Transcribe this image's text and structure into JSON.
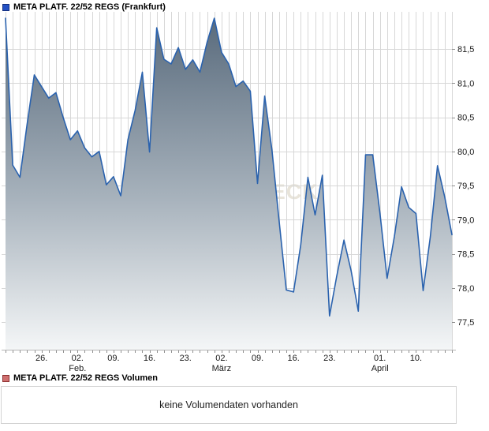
{
  "header": {
    "title": "META PLATF. 22/52 REGS (Frankfurt)"
  },
  "volume": {
    "title": "META PLATF. 22/52 REGS Volumen",
    "message": "keine Volumendaten vorhanden"
  },
  "watermark": "AKTIENCHECK",
  "colors": {
    "legend_blue": "#2451c4",
    "legend_blue_border": "#142f7d",
    "legend_red": "#cf6f6f",
    "legend_red_border": "#8c3030",
    "line": "#2a62ae",
    "fill_top": "#56687a",
    "fill_mid": "#a7b2bc",
    "fill_bottom": "#f4f6f7",
    "grid": "#d7d7d7",
    "axis": "#b5b5b5",
    "tick": "#8f8f8f",
    "text": "#1a1a1a",
    "watermark": "#e8e4da"
  },
  "chart_data": {
    "type": "area",
    "title": "META PLATF. 22/52 REGS (Frankfurt)",
    "legend_position": "top-left",
    "grid": true,
    "ylim": [
      77.1,
      82.05
    ],
    "y_ticks": [
      {
        "value": 81.5,
        "label": "81,5"
      },
      {
        "value": 81.0,
        "label": "81,0"
      },
      {
        "value": 80.5,
        "label": "80,5"
      },
      {
        "value": 80.0,
        "label": "80,0"
      },
      {
        "value": 79.5,
        "label": "79,5"
      },
      {
        "value": 79.0,
        "label": "79,0"
      },
      {
        "value": 78.5,
        "label": "78,5"
      },
      {
        "value": 78.0,
        "label": "78,0"
      },
      {
        "value": 77.5,
        "label": "77,5"
      }
    ],
    "x_ticks": [
      {
        "day": 5,
        "label": "26."
      },
      {
        "day": 10,
        "label": "02.",
        "month": "Feb."
      },
      {
        "day": 15,
        "label": "09."
      },
      {
        "day": 20,
        "label": "16."
      },
      {
        "day": 25,
        "label": "23."
      },
      {
        "day": 30,
        "label": "02.",
        "month": "März"
      },
      {
        "day": 35,
        "label": "09."
      },
      {
        "day": 40,
        "label": "16."
      },
      {
        "day": 45,
        "label": "23."
      },
      {
        "day": 52,
        "label": "01.",
        "month": "April"
      },
      {
        "day": 57,
        "label": "10."
      }
    ],
    "x_unit": "trading-day",
    "values": [
      81.95,
      79.8,
      79.62,
      80.4,
      81.12,
      80.95,
      80.78,
      80.86,
      80.5,
      80.17,
      80.3,
      80.05,
      79.92,
      80.0,
      79.51,
      79.63,
      79.35,
      80.17,
      80.6,
      81.16,
      79.99,
      81.81,
      81.35,
      81.28,
      81.52,
      81.2,
      81.34,
      81.16,
      81.6,
      81.95,
      81.45,
      81.28,
      80.95,
      81.03,
      80.88,
      79.53,
      80.81,
      80.02,
      78.98,
      77.97,
      77.94,
      78.63,
      79.62,
      79.07,
      79.65,
      77.59,
      78.17,
      78.7,
      78.25,
      77.66,
      79.95,
      79.95,
      79.1,
      78.14,
      78.75,
      79.48,
      79.18,
      79.09,
      77.96,
      78.75,
      79.79,
      79.33,
      78.78
    ]
  }
}
